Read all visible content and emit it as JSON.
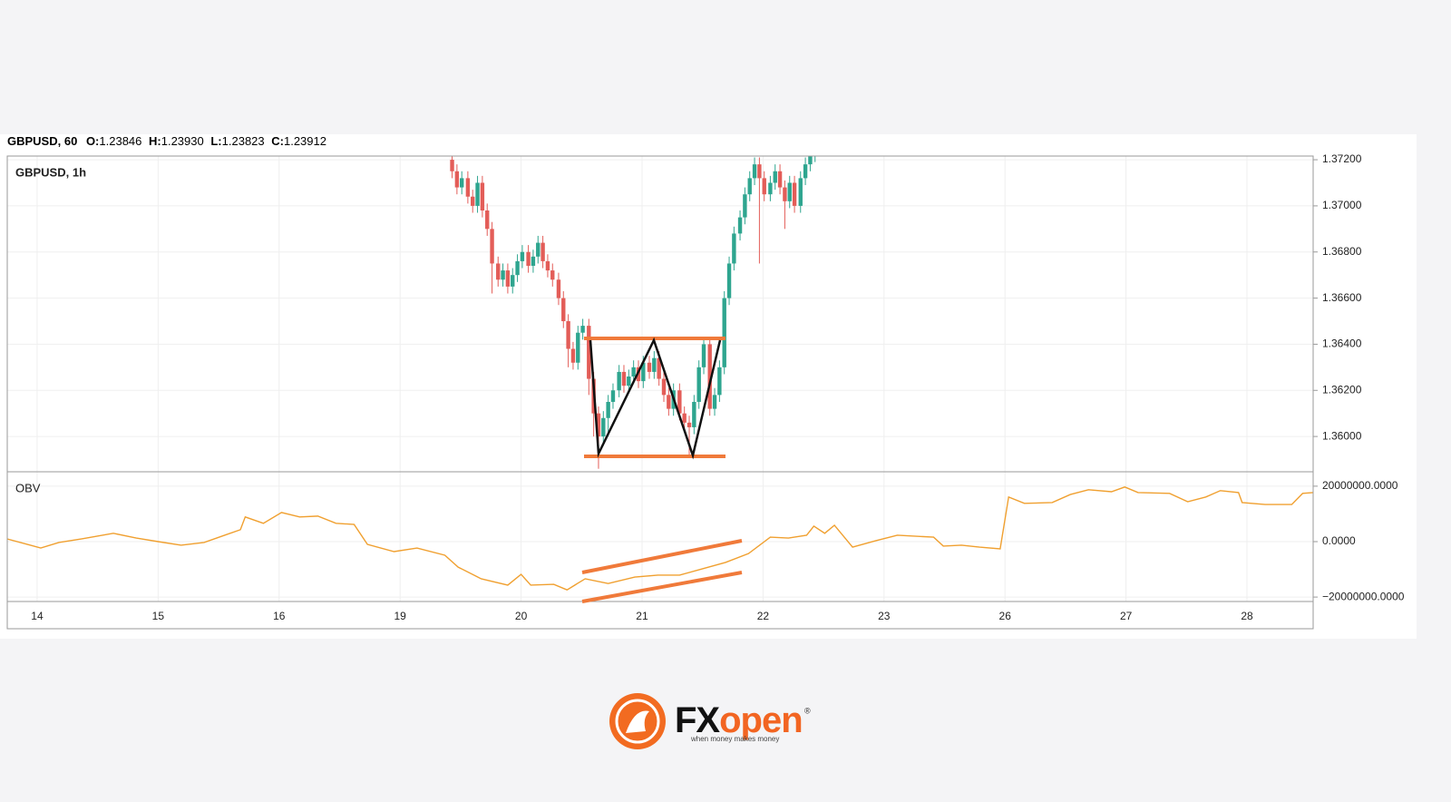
{
  "header": {
    "symbol": "GBPUSD, 60",
    "fields": [
      {
        "label": "O:",
        "value": "1.23846"
      },
      {
        "label": "H:",
        "value": "1.23930"
      },
      {
        "label": "L:",
        "value": "1.23823"
      },
      {
        "label": "C:",
        "value": "1.23912"
      }
    ]
  },
  "chart_data": [
    {
      "type": "candlestick",
      "title": "GBPUSD, 1h",
      "up_color": "#2ea58f",
      "down_color": "#e35d58",
      "xlim": [
        -0.247,
        10.547
      ],
      "ylim": [
        1.35847,
        1.37216
      ],
      "yticks": [
        {
          "value": 1.36,
          "label": "1.36000"
        },
        {
          "value": 1.362,
          "label": "1.36200"
        },
        {
          "value": 1.364,
          "label": "1.36400"
        },
        {
          "value": 1.366,
          "label": "1.36600"
        },
        {
          "value": 1.368,
          "label": "1.36800"
        },
        {
          "value": 1.37,
          "label": "1.37000"
        },
        {
          "value": 1.372,
          "label": "1.37200"
        }
      ],
      "grid": true,
      "x": [
        3.43,
        3.47,
        3.51,
        3.56,
        3.6,
        3.64,
        3.68,
        3.72,
        3.76,
        3.81,
        3.85,
        3.89,
        3.93,
        3.97,
        4.01,
        4.06,
        4.1,
        4.14,
        4.18,
        4.22,
        4.26,
        4.31,
        4.35,
        4.39,
        4.43,
        4.47,
        4.51,
        4.56,
        4.6,
        4.64,
        4.68,
        4.72,
        4.76,
        4.81,
        4.85,
        4.89,
        4.93,
        4.97,
        5.01,
        5.06,
        5.1,
        5.14,
        5.18,
        5.22,
        5.26,
        5.31,
        5.35,
        5.39,
        5.43,
        5.47,
        5.51,
        5.56,
        5.6,
        5.64,
        5.68,
        5.72,
        5.76,
        5.81,
        5.85,
        5.89,
        5.93,
        5.97,
        6.01,
        6.06,
        6.1,
        6.14,
        6.18,
        6.22,
        6.26,
        6.31,
        6.35,
        6.39,
        6.43
      ],
      "open": [
        1.372,
        1.3715,
        1.3708,
        1.3712,
        1.3704,
        1.37,
        1.371,
        1.3698,
        1.369,
        1.3675,
        1.3668,
        1.3672,
        1.3665,
        1.367,
        1.3676,
        1.368,
        1.3674,
        1.3678,
        1.3684,
        1.3676,
        1.3672,
        1.3668,
        1.366,
        1.365,
        1.3638,
        1.3632,
        1.3645,
        1.3648,
        1.3625,
        1.361,
        1.36,
        1.3608,
        1.3615,
        1.362,
        1.3628,
        1.3622,
        1.3626,
        1.363,
        1.3624,
        1.3632,
        1.3628,
        1.3634,
        1.3625,
        1.3618,
        1.3612,
        1.362,
        1.361,
        1.3606,
        1.3604,
        1.3615,
        1.363,
        1.364,
        1.3612,
        1.3618,
        1.363,
        1.366,
        1.3675,
        1.3688,
        1.3695,
        1.3705,
        1.3712,
        1.3718,
        1.3712,
        1.3705,
        1.371,
        1.3715,
        1.3708,
        1.3702,
        1.371,
        1.37,
        1.3712,
        1.3718,
        1.3722
      ],
      "high": [
        1.3723,
        1.3718,
        1.3715,
        1.3715,
        1.3707,
        1.3713,
        1.3713,
        1.3701,
        1.3693,
        1.3678,
        1.3675,
        1.3675,
        1.3673,
        1.3679,
        1.3683,
        1.3683,
        1.3681,
        1.3687,
        1.3687,
        1.3679,
        1.3675,
        1.3671,
        1.3663,
        1.3653,
        1.3641,
        1.3648,
        1.3651,
        1.3651,
        1.3628,
        1.3613,
        1.3611,
        1.3618,
        1.3623,
        1.3631,
        1.3631,
        1.3629,
        1.3633,
        1.3633,
        1.3635,
        1.3635,
        1.3637,
        1.3637,
        1.3628,
        1.3621,
        1.3623,
        1.3623,
        1.3613,
        1.3609,
        1.3618,
        1.3633,
        1.3643,
        1.3643,
        1.3621,
        1.3633,
        1.3663,
        1.3678,
        1.3691,
        1.3698,
        1.3708,
        1.3715,
        1.3721,
        1.3721,
        1.3715,
        1.3713,
        1.3718,
        1.3718,
        1.3711,
        1.3713,
        1.3713,
        1.3715,
        1.3721,
        1.3725,
        1.3728
      ],
      "low": [
        1.3712,
        1.3705,
        1.3705,
        1.3701,
        1.3697,
        1.3697,
        1.3695,
        1.3687,
        1.3662,
        1.3665,
        1.3665,
        1.3662,
        1.3662,
        1.3667,
        1.3673,
        1.3671,
        1.3671,
        1.3675,
        1.3673,
        1.3669,
        1.3665,
        1.3657,
        1.3647,
        1.363,
        1.3629,
        1.3629,
        1.3642,
        1.3618,
        1.36,
        1.3586,
        1.3596,
        1.36,
        1.3612,
        1.3617,
        1.3619,
        1.3619,
        1.3623,
        1.3621,
        1.3621,
        1.3625,
        1.3625,
        1.3622,
        1.3615,
        1.3609,
        1.3609,
        1.3607,
        1.3603,
        1.3592,
        1.3601,
        1.3612,
        1.3627,
        1.3609,
        1.3609,
        1.3615,
        1.3627,
        1.3657,
        1.3672,
        1.3685,
        1.3692,
        1.3702,
        1.3709,
        1.3675,
        1.3702,
        1.3702,
        1.3707,
        1.3705,
        1.369,
        1.3699,
        1.3697,
        1.3697,
        1.3709,
        1.3715,
        1.3719
      ],
      "close": [
        1.3715,
        1.3708,
        1.3712,
        1.3704,
        1.37,
        1.371,
        1.3698,
        1.369,
        1.3675,
        1.3668,
        1.3672,
        1.3665,
        1.367,
        1.3676,
        1.368,
        1.3674,
        1.3678,
        1.3684,
        1.3676,
        1.3672,
        1.3668,
        1.366,
        1.365,
        1.3638,
        1.3632,
        1.3645,
        1.3648,
        1.3625,
        1.361,
        1.36,
        1.3608,
        1.3615,
        1.362,
        1.3628,
        1.3622,
        1.3626,
        1.363,
        1.3624,
        1.3632,
        1.3628,
        1.3634,
        1.3625,
        1.3618,
        1.3612,
        1.362,
        1.361,
        1.3606,
        1.3604,
        1.3615,
        1.363,
        1.364,
        1.3612,
        1.3618,
        1.363,
        1.366,
        1.3675,
        1.3688,
        1.3695,
        1.3705,
        1.3712,
        1.3718,
        1.3712,
        1.3705,
        1.371,
        1.3715,
        1.3708,
        1.3702,
        1.371,
        1.37,
        1.3712,
        1.3718,
        1.3722,
        1.3725
      ]
    },
    {
      "type": "line",
      "title": "OBV",
      "color": "#f0a030",
      "xlim": [
        -0.247,
        10.547
      ],
      "ylim": [
        -21600000,
        25200000
      ],
      "yticks": [
        {
          "value": 20000000,
          "label": "20000000.0000"
        },
        {
          "value": 0,
          "label": "0.0000"
        },
        {
          "value": -20000000,
          "label": "−20000000.0000"
        }
      ],
      "xticks": [
        {
          "value": 0,
          "label": "14"
        },
        {
          "value": 1,
          "label": "15"
        },
        {
          "value": 2,
          "label": "16"
        },
        {
          "value": 3,
          "label": "19"
        },
        {
          "value": 4,
          "label": "20"
        },
        {
          "value": 5,
          "label": "21"
        },
        {
          "value": 6,
          "label": "22"
        },
        {
          "value": 7,
          "label": "23"
        },
        {
          "value": 8,
          "label": "26"
        },
        {
          "value": 9,
          "label": "27"
        },
        {
          "value": 10,
          "label": "28"
        }
      ],
      "grid": true,
      "x": [
        -0.25,
        -0.08,
        0.03,
        0.18,
        0.37,
        0.63,
        0.82,
        1.0,
        1.19,
        1.38,
        1.55,
        1.68,
        1.72,
        1.87,
        2.02,
        2.17,
        2.32,
        2.47,
        2.62,
        2.73,
        2.95,
        3.14,
        3.37,
        3.48,
        3.67,
        3.89,
        4.0,
        4.08,
        4.27,
        4.38,
        4.53,
        4.72,
        4.94,
        5.13,
        5.31,
        5.5,
        5.69,
        5.88,
        6.06,
        6.21,
        6.36,
        6.42,
        6.51,
        6.59,
        6.74,
        6.93,
        7.11,
        7.41,
        7.49,
        7.64,
        7.79,
        7.96,
        8.03,
        8.16,
        8.39,
        8.54,
        8.69,
        8.88,
        8.99,
        9.1,
        9.36,
        9.51,
        9.66,
        9.78,
        9.93,
        9.96,
        10.15,
        10.37,
        10.46,
        10.55
      ],
      "values": [
        1000000,
        -1000000,
        -2300000,
        -300000,
        1000000,
        3000000,
        1300000,
        0,
        -1300000,
        -300000,
        2300000,
        4300000,
        8900000,
        6600000,
        10500000,
        8900000,
        9200000,
        6600000,
        6200000,
        -1000000,
        -3600000,
        -2300000,
        -4900000,
        -9200000,
        -13400000,
        -15700000,
        -11800000,
        -15700000,
        -15400000,
        -17400000,
        -13400000,
        -15100000,
        -12800000,
        -12100000,
        -12100000,
        -9800000,
        -7500000,
        -4300000,
        1600000,
        1300000,
        2300000,
        5600000,
        3000000,
        5900000,
        -2000000,
        300000,
        2300000,
        1600000,
        -1600000,
        -1300000,
        -2000000,
        -2600000,
        16100000,
        13800000,
        14100000,
        17000000,
        18700000,
        18000000,
        19700000,
        17700000,
        17400000,
        14400000,
        16100000,
        18400000,
        17700000,
        14100000,
        13400000,
        13400000,
        17400000,
        17700000
      ]
    }
  ],
  "logo": {
    "brand_a": "FX",
    "brand_b": "open",
    "mark": "®",
    "tagline": "when money makes money"
  }
}
